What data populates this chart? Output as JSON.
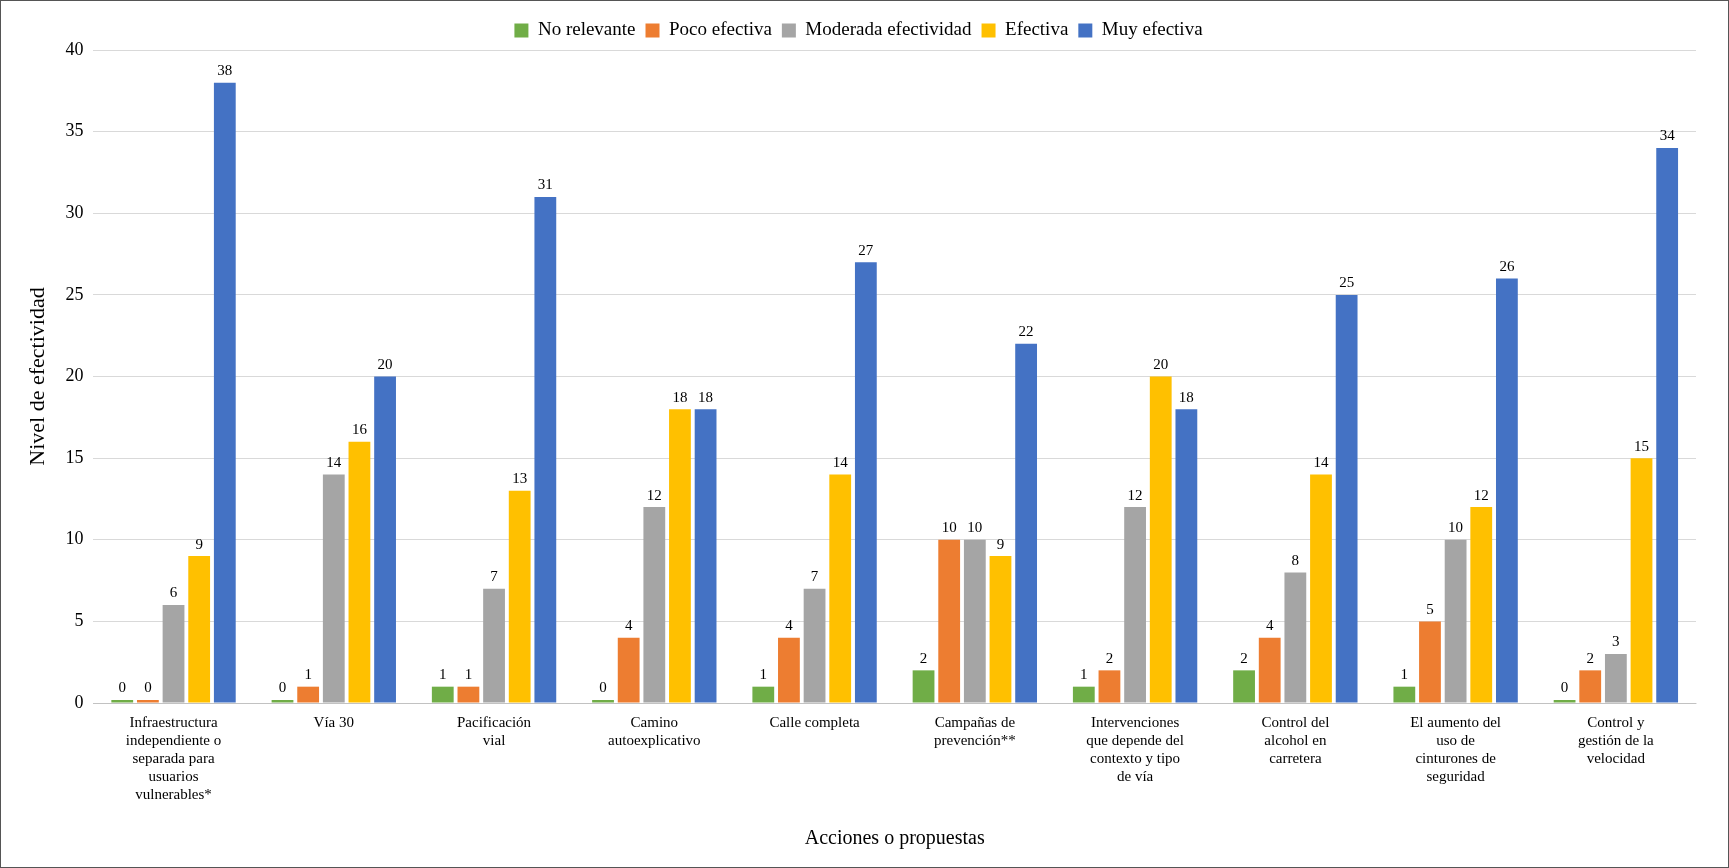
{
  "chart_data": {
    "type": "bar",
    "xlabel": "Acciones o propuestas",
    "ylabel": "Nivel de efectividad",
    "categories": [
      "Infraestructura independiente o separada para usuarios vulnerables*",
      "Vía 30",
      "Pacificación vial",
      "Camino autoexplicativo",
      "Calle completa",
      "Campañas de prevención**",
      "Intervenciones que depende del contexto y tipo de vía",
      "Control del alcohol en carretera",
      "El aumento del uso de cinturones de seguridad",
      "Control y gestión de la velocidad"
    ],
    "series": [
      {
        "name": "No relevante",
        "color": "#70ad47",
        "values": [
          0,
          0,
          1,
          0,
          1,
          2,
          1,
          2,
          1,
          0
        ]
      },
      {
        "name": "Poco efectiva",
        "color": "#ed7d31",
        "values": [
          0,
          1,
          1,
          4,
          4,
          10,
          2,
          4,
          5,
          2
        ]
      },
      {
        "name": "Moderada efectividad",
        "color": "#a5a5a5",
        "values": [
          6,
          14,
          7,
          12,
          7,
          10,
          12,
          8,
          10,
          3
        ]
      },
      {
        "name": "Efectiva",
        "color": "#ffc000",
        "values": [
          9,
          16,
          13,
          18,
          14,
          9,
          20,
          14,
          12,
          15
        ]
      },
      {
        "name": "Muy efectiva",
        "color": "#4472c4",
        "values": [
          38,
          20,
          31,
          18,
          27,
          22,
          18,
          25,
          26,
          34
        ]
      }
    ],
    "ylim": [
      0,
      40
    ],
    "yticks": [
      0,
      5,
      10,
      15,
      20,
      25,
      30,
      35,
      40
    ],
    "grid": "y",
    "legend": "top",
    "data_labels": true
  }
}
